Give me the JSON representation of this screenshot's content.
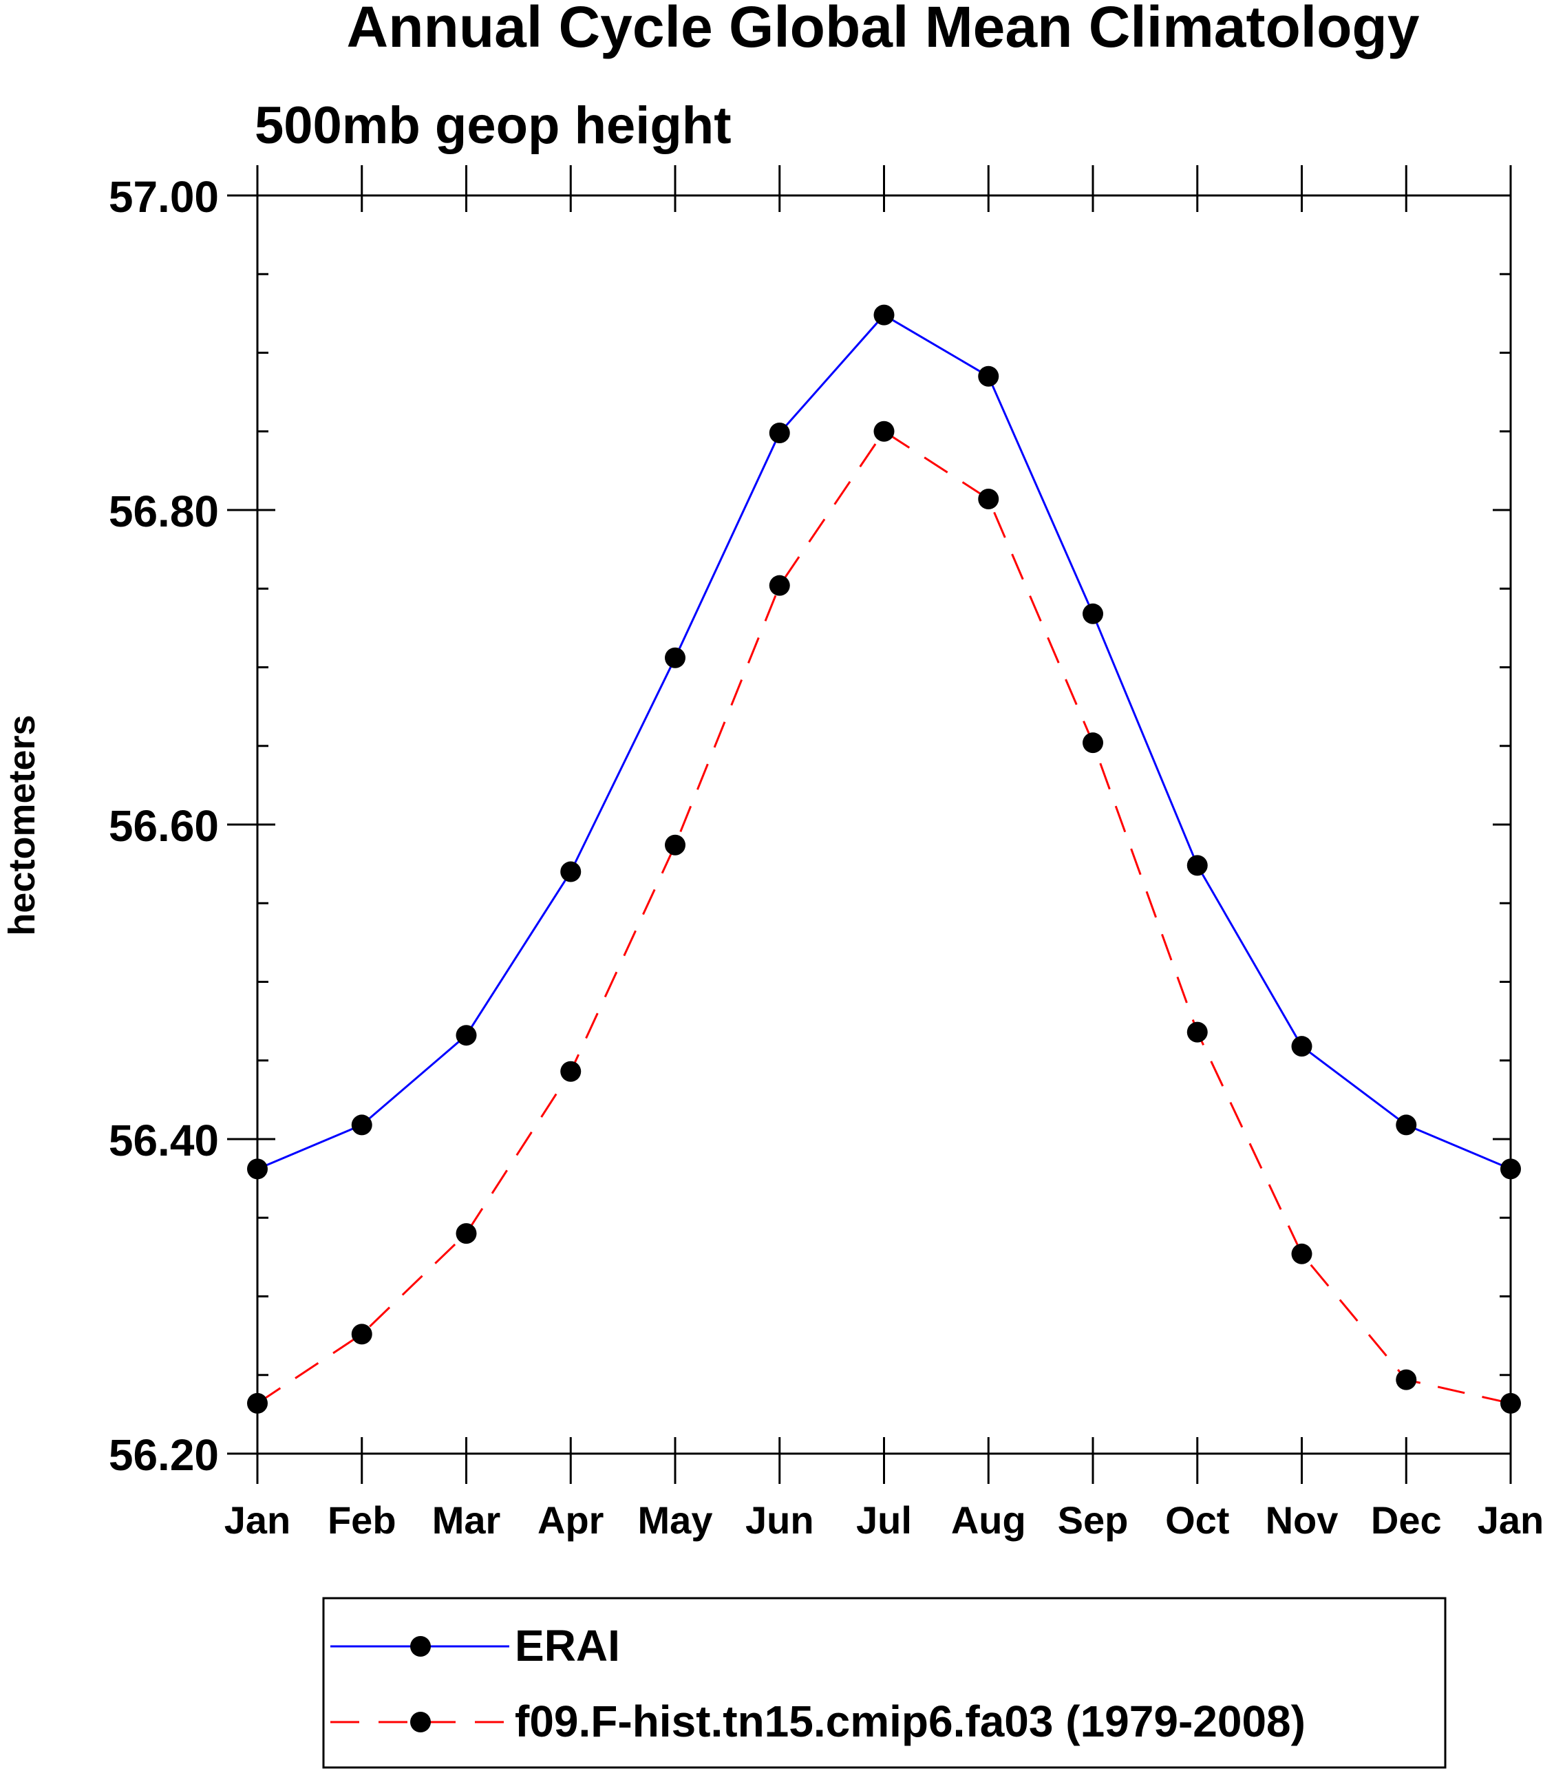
{
  "chart_data": {
    "type": "line",
    "title": "Annual Cycle Global Mean Climatology",
    "subtitle": "500mb geop height",
    "xlabel": "",
    "ylabel": "hectometers",
    "categories": [
      "Jan",
      "Feb",
      "Mar",
      "Apr",
      "May",
      "Jun",
      "Jul",
      "Aug",
      "Sep",
      "Oct",
      "Nov",
      "Dec",
      "Jan"
    ],
    "ylim": [
      56.2,
      57.0
    ],
    "yticks": [
      "56.20",
      "56.40",
      "56.60",
      "56.80",
      "57.00"
    ],
    "grid": false,
    "legend_position": "bottom",
    "series": [
      {
        "name": "ERAI",
        "color": "#0000ff",
        "line_style": "solid",
        "marker": "filled-circle",
        "values": [
          56.381,
          56.409,
          56.466,
          56.57,
          56.706,
          56.849,
          56.924,
          56.885,
          56.734,
          56.574,
          56.459,
          56.409,
          56.381
        ]
      },
      {
        "name": "f09.F-hist.tn15.cmip6.fa03 (1979-2008)",
        "color": "#ff0000",
        "line_style": "dashed",
        "marker": "filled-circle",
        "values": [
          56.232,
          56.276,
          56.34,
          56.443,
          56.587,
          56.752,
          56.85,
          56.807,
          56.652,
          56.468,
          56.327,
          56.247,
          56.232
        ]
      }
    ]
  }
}
